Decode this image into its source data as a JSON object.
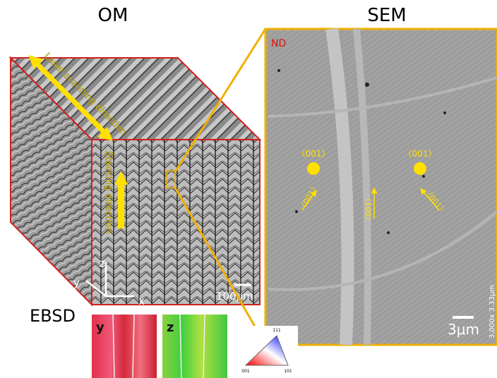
{
  "panels": {
    "om": {
      "title": "OM",
      "laser_label": "Laser scanning direction",
      "stacking_label": "Stacking direction",
      "axes": {
        "z": "z",
        "y": "y",
        "x": "x"
      },
      "scale_bar": "100μm"
    },
    "sem": {
      "title": "SEM",
      "nd_label": "ND",
      "orientation_left": "〈001〉",
      "orientation_right": "〈001〉",
      "arrow_labels": [
        "〈001〉",
        "〈001〉",
        "〈001〉"
      ],
      "scale_bar": "3μm",
      "instrument_note": "3,000x  3.33μm"
    },
    "ebsd": {
      "title": "EBSD",
      "maps": [
        "y",
        "z"
      ],
      "legend_corners": [
        "111",
        "001",
        "101"
      ]
    }
  }
}
